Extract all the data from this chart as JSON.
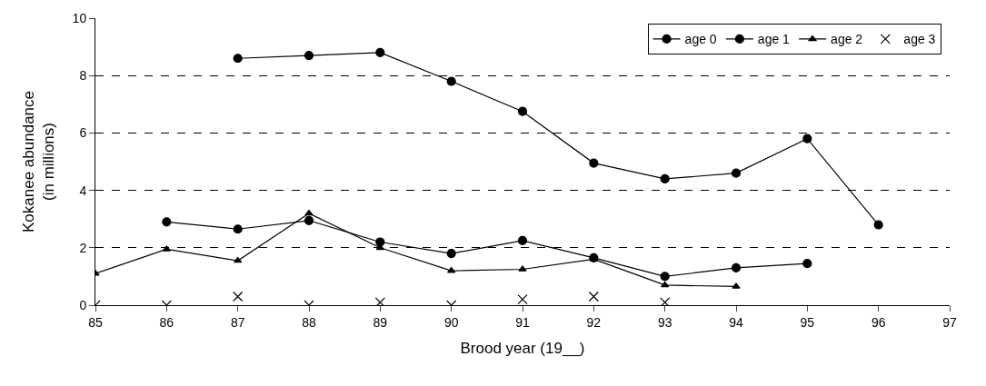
{
  "chart_data": {
    "type": "line",
    "xlabel": "Brood year (19__)",
    "ylabel": "Kokanee abundance\n(in millions)",
    "x": [
      85,
      86,
      87,
      88,
      89,
      90,
      91,
      92,
      93,
      94,
      95,
      96
    ],
    "series": [
      {
        "name": "age 0",
        "color": "#000000",
        "marker": "circle",
        "values": [
          null,
          null,
          8.6,
          8.7,
          8.8,
          7.8,
          6.75,
          4.95,
          4.4,
          4.6,
          5.8,
          2.8
        ]
      },
      {
        "name": "age 1",
        "color": "#000000",
        "marker": "circle",
        "values": [
          null,
          2.9,
          2.65,
          2.95,
          2.2,
          1.8,
          2.25,
          1.65,
          1.0,
          1.3,
          1.45,
          null
        ]
      },
      {
        "name": "age 2",
        "color": "#000000",
        "marker": "triangle",
        "values": [
          1.1,
          1.95,
          1.55,
          3.2,
          2.0,
          1.2,
          1.25,
          1.6,
          0.7,
          0.65,
          null,
          null
        ]
      },
      {
        "name": "age 3",
        "color": "#000000",
        "type": "scatter",
        "marker": "cross",
        "values": [
          0,
          0,
          0.3,
          0,
          0.1,
          0,
          0.2,
          0.3,
          0.1,
          null,
          null,
          null
        ]
      }
    ],
    "xlim": [
      85,
      97
    ],
    "xticks": [
      85,
      86,
      87,
      88,
      89,
      90,
      91,
      92,
      93,
      94,
      95,
      96,
      97
    ],
    "ylim": [
      0,
      10
    ],
    "yticks": [
      0,
      2,
      4,
      6,
      8,
      10
    ],
    "grid": "y",
    "legend": "top right"
  }
}
